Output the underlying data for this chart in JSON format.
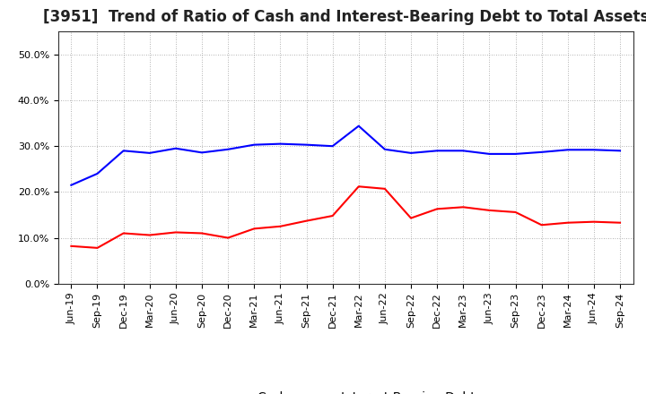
{
  "title": "[3951]  Trend of Ratio of Cash and Interest-Bearing Debt to Total Assets",
  "x_labels": [
    "Jun-19",
    "Sep-19",
    "Dec-19",
    "Mar-20",
    "Jun-20",
    "Sep-20",
    "Dec-20",
    "Mar-21",
    "Jun-21",
    "Sep-21",
    "Dec-21",
    "Mar-22",
    "Jun-22",
    "Sep-22",
    "Dec-22",
    "Mar-23",
    "Jun-23",
    "Sep-23",
    "Dec-23",
    "Mar-24",
    "Jun-24",
    "Sep-24"
  ],
  "cash": [
    0.082,
    0.078,
    0.11,
    0.106,
    0.112,
    0.11,
    0.1,
    0.12,
    0.125,
    0.137,
    0.148,
    0.212,
    0.207,
    0.143,
    0.163,
    0.167,
    0.16,
    0.156,
    0.128,
    0.133,
    0.135,
    0.133
  ],
  "interest_bearing_debt": [
    0.215,
    0.24,
    0.29,
    0.285,
    0.295,
    0.286,
    0.293,
    0.303,
    0.305,
    0.303,
    0.3,
    0.344,
    0.293,
    0.285,
    0.29,
    0.29,
    0.283,
    0.283,
    0.287,
    0.292,
    0.292,
    0.29
  ],
  "cash_color": "#ff0000",
  "debt_color": "#0000ff",
  "ylim": [
    0.0,
    0.55
  ],
  "yticks": [
    0.0,
    0.1,
    0.2,
    0.3,
    0.4,
    0.5
  ],
  "background_color": "#ffffff",
  "grid_color": "#999999",
  "title_fontsize": 12,
  "tick_fontsize": 8,
  "legend_fontsize": 10
}
